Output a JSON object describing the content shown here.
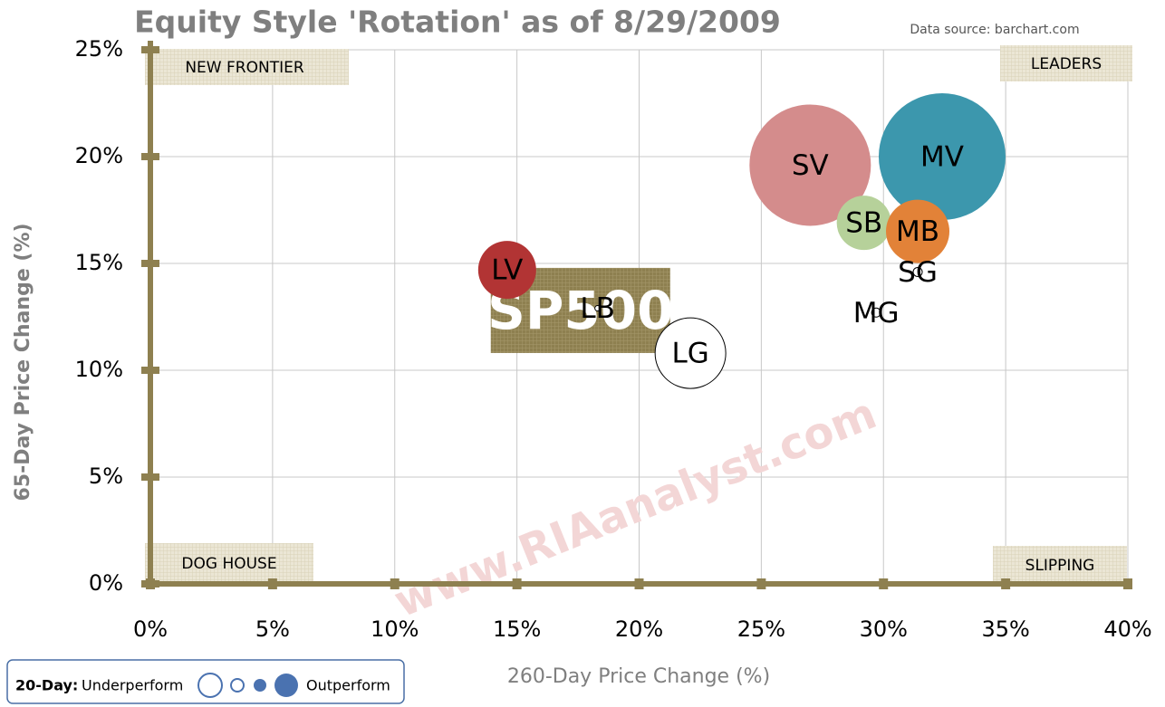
{
  "chart_data": {
    "type": "scatter",
    "title": "Equity Style 'Rotation' as of 8/29/2009",
    "source": "Data source: barchart.com",
    "x_label": "260-Day Price Change (%)",
    "y_label": "65-Day Price Change (%)",
    "xlim": [
      0,
      40
    ],
    "ylim": [
      0,
      25
    ],
    "xticks": [
      {
        "value": 0,
        "label": "0%"
      },
      {
        "value": 5,
        "label": "5%"
      },
      {
        "value": 10,
        "label": "10%"
      },
      {
        "value": 15,
        "label": "15%"
      },
      {
        "value": 20,
        "label": "20%"
      },
      {
        "value": 25,
        "label": "25%"
      },
      {
        "value": 30,
        "label": "30%"
      },
      {
        "value": 35,
        "label": "35%"
      },
      {
        "value": 40,
        "label": "40%"
      }
    ],
    "yticks": [
      {
        "value": 0,
        "label": "0%"
      },
      {
        "value": 5,
        "label": "5%"
      },
      {
        "value": 10,
        "label": "10%"
      },
      {
        "value": 15,
        "label": "15%"
      },
      {
        "value": 20,
        "label": "20%"
      },
      {
        "value": 25,
        "label": "25%"
      }
    ],
    "grid": true,
    "quadrants": [
      "NEW FRONTIER",
      "LEADERS",
      "DOG HOUSE",
      "SLIPPING"
    ],
    "watermark": "www.RIAanalyst.com",
    "legend": {
      "title": "20-Day:",
      "low": "Underperform",
      "high": "Outperform"
    },
    "series": [
      {
        "name": "SP500",
        "marker": "square",
        "color": "#8e8050",
        "x": [
          17.6
        ],
        "values": [
          12.8
        ],
        "sizes": [
          4
        ]
      },
      {
        "name": "SV",
        "color": "#d48c8c",
        "x": [
          27.0
        ],
        "values": [
          19.6
        ],
        "sizes": [
          6.7
        ]
      },
      {
        "name": "MV",
        "color": "#3c97ad",
        "x": [
          32.4
        ],
        "values": [
          20.0
        ],
        "sizes": [
          7.0
        ]
      },
      {
        "name": "SB",
        "color": "#b6d19a",
        "x": [
          29.2
        ],
        "values": [
          16.9
        ],
        "sizes": [
          3.0
        ]
      },
      {
        "name": "MB",
        "color": "#e28238",
        "x": [
          31.4
        ],
        "values": [
          16.5
        ],
        "sizes": [
          3.5
        ]
      },
      {
        "name": "SG",
        "color": "#ffffff",
        "x": [
          31.4
        ],
        "values": [
          14.6
        ],
        "sizes": [
          0.5
        ]
      },
      {
        "name": "MG",
        "color": "#ffffff",
        "x": [
          29.7
        ],
        "values": [
          12.7
        ],
        "sizes": [
          0.5
        ]
      },
      {
        "name": "LV",
        "color": "#b23434",
        "x": [
          14.6
        ],
        "values": [
          14.7
        ],
        "sizes": [
          3.2
        ]
      },
      {
        "name": "LB",
        "color": "#ffffff",
        "x": [
          18.3
        ],
        "values": [
          12.9
        ],
        "sizes": [
          0.3
        ]
      },
      {
        "name": "LG",
        "color": "#ffffff",
        "x": [
          22.1
        ],
        "values": [
          10.8
        ],
        "sizes": [
          3.9
        ]
      }
    ]
  }
}
